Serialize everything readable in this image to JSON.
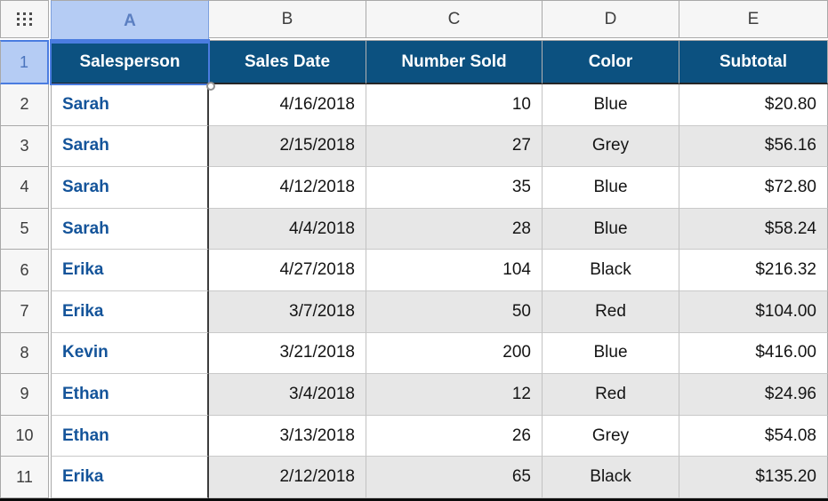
{
  "spreadsheet": {
    "corner": {
      "icon": "table-drag-handle"
    },
    "column_bar": {
      "letters": [
        "A",
        "B",
        "C",
        "D",
        "E"
      ],
      "selected": "A"
    },
    "row_bar": {
      "numbers": [
        "1",
        "2",
        "3",
        "4",
        "5",
        "6",
        "7",
        "8",
        "9",
        "10",
        "11"
      ],
      "selected": "1"
    },
    "header": [
      "Salesperson",
      "Sales Date",
      "Number Sold",
      "Color",
      "Subtotal"
    ],
    "rows": [
      [
        "Sarah",
        "4/16/2018",
        "10",
        "Blue",
        "$20.80"
      ],
      [
        "Sarah",
        "2/15/2018",
        "27",
        "Grey",
        "$56.16"
      ],
      [
        "Sarah",
        "4/12/2018",
        "35",
        "Blue",
        "$72.80"
      ],
      [
        "Sarah",
        "4/4/2018",
        "28",
        "Blue",
        "$58.24"
      ],
      [
        "Erika",
        "4/27/2018",
        "104",
        "Black",
        "$216.32"
      ],
      [
        "Erika",
        "3/7/2018",
        "50",
        "Red",
        "$104.00"
      ],
      [
        "Kevin",
        "3/21/2018",
        "200",
        "Blue",
        "$416.00"
      ],
      [
        "Ethan",
        "3/4/2018",
        "12",
        "Red",
        "$24.96"
      ],
      [
        "Ethan",
        "3/13/2018",
        "26",
        "Grey",
        "$54.08"
      ],
      [
        "Erika",
        "2/12/2018",
        "65",
        "Black",
        "$135.20"
      ]
    ],
    "column_alignments": [
      "left",
      "right",
      "right",
      "center",
      "right"
    ],
    "selected_cell": "A1",
    "colors": {
      "header_bg": "#0c5180",
      "header_text": "#ffffff",
      "name_text": "#14549a",
      "selection_accent": "#4a7ce0",
      "selected_tab_bg": "#b5ccf4",
      "alt_row_bg": "#e7e7e7",
      "bar_bg": "#f6f6f6",
      "dark_divider": "#3c3c3c"
    }
  }
}
